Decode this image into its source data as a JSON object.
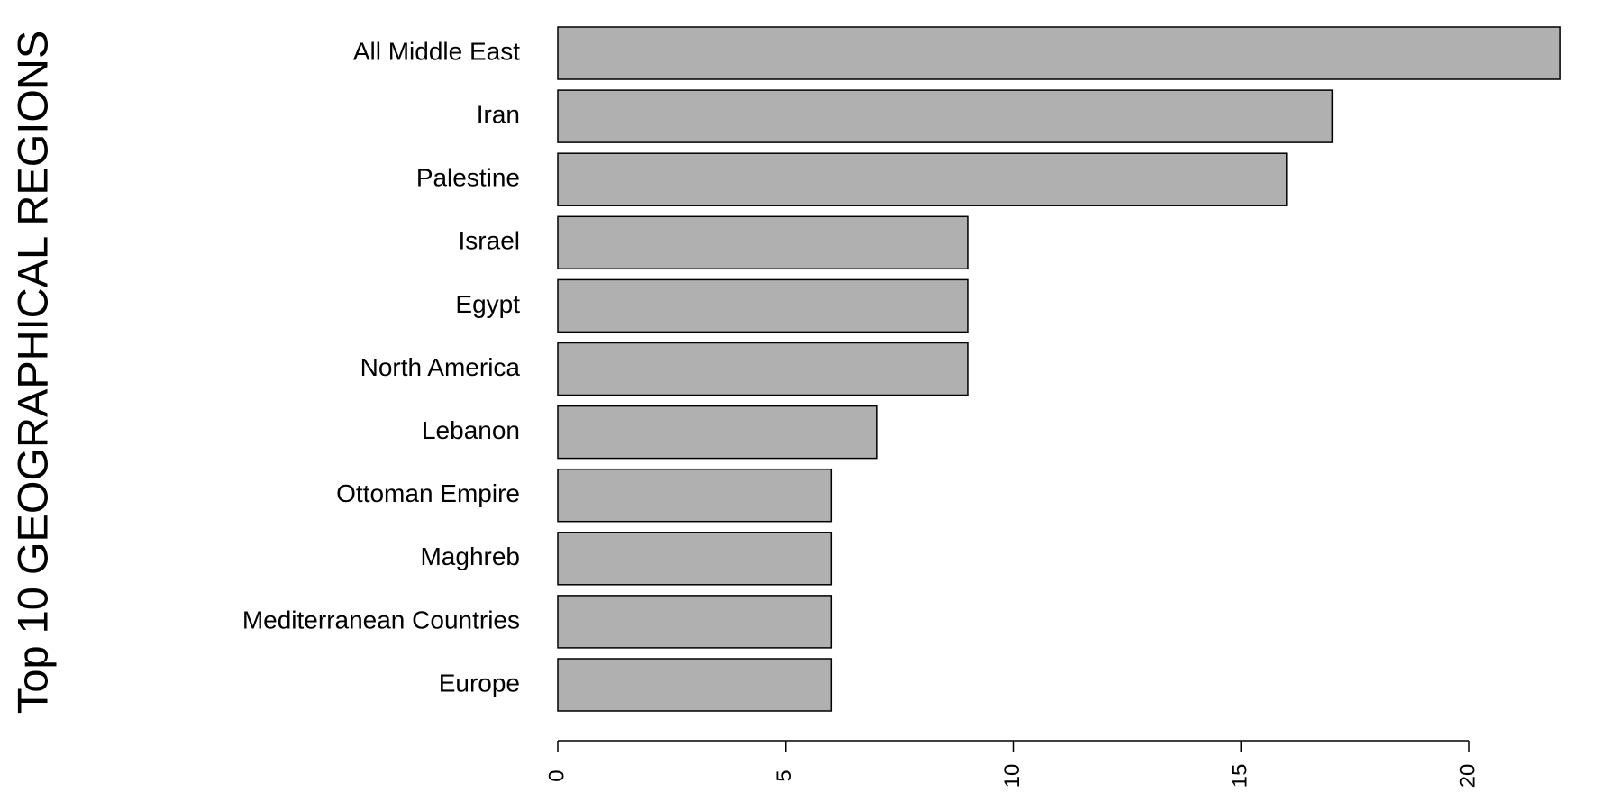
{
  "chart_data": {
    "type": "barh",
    "title": "Top 10 GEOGRAPHICAL REGIONS",
    "categories": [
      "All Middle East",
      "Iran",
      "Palestine",
      "Israel",
      "Egypt",
      "North America",
      "Lebanon",
      "Ottoman Empire",
      "Maghreb",
      "Mediterranean Countries",
      "Europe"
    ],
    "values": [
      22,
      17,
      16,
      9,
      9,
      9,
      7,
      6,
      6,
      6,
      6
    ],
    "color": "#b0b0b0",
    "xlim": [
      0,
      22
    ],
    "xticks": [
      0,
      5,
      10,
      15,
      20
    ]
  }
}
